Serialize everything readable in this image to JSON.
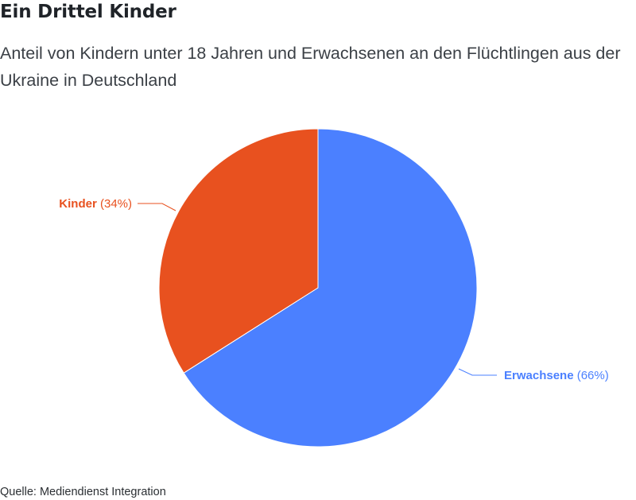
{
  "title": "Ein Drittel Kinder",
  "subtitle": "Anteil von Kindern unter 18 Jahren und Erwachsenen an den Flüchtlingen aus der Ukraine in Deutschland",
  "source": "Quelle: Mediendienst Integration",
  "colors": {
    "kinder": "#e8511f",
    "erwachsene": "#4b80ff",
    "leader_kinder": "#e8511f",
    "leader_erwachsene": "#4b80ff"
  },
  "chart_data": {
    "type": "pie",
    "title": "Ein Drittel Kinder",
    "subtitle": "Anteil von Kindern unter 18 Jahren und Erwachsenen an den Flüchtlingen aus der Ukraine in Deutschland",
    "slices": [
      {
        "label": "Erwachsene",
        "value": 66,
        "value_label": "(66%)"
      },
      {
        "label": "Kinder",
        "value": 34,
        "value_label": "(34%)"
      }
    ],
    "source": "Quelle: Mediendienst Integration"
  }
}
